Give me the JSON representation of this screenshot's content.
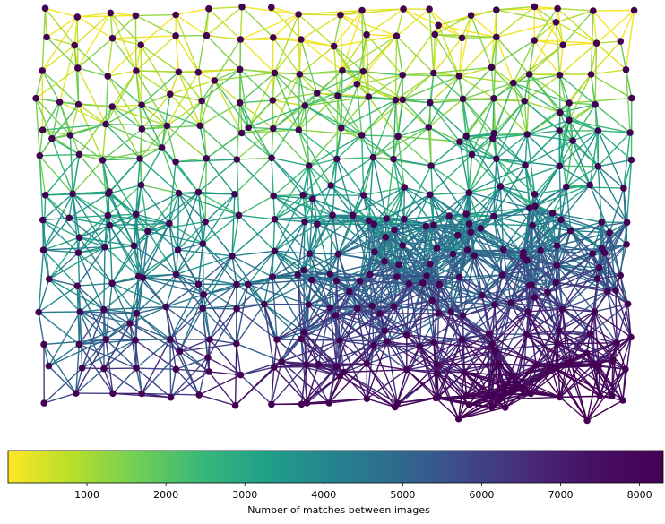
{
  "chart_data": {
    "type": "network",
    "title": "",
    "colorbar": {
      "label": "Number of matches between images",
      "colormap": "viridis_r",
      "range": [
        0,
        8300
      ],
      "ticks": [
        1000,
        2000,
        3000,
        4000,
        5000,
        6000,
        7000,
        8000
      ],
      "tick_labels": [
        "1000",
        "2000",
        "3000",
        "4000",
        "5000",
        "6000",
        "7000",
        "8000"
      ],
      "orientation": "horizontal",
      "placement": "bottom"
    },
    "node_color": "#440154",
    "node_grid": {
      "columns": 19,
      "rows": 14
    },
    "edge_pattern": "match count high in lower-right region, low in upper-left; values span roughly 100 to 8300"
  }
}
